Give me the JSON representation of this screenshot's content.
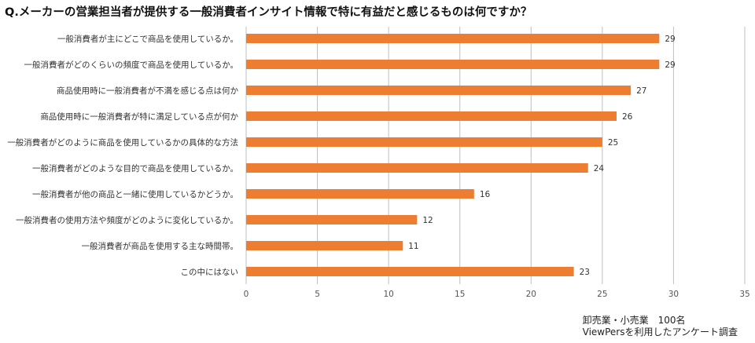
{
  "title": "Q.メーカーの営業担当者が提供する一般消費者インサイト情報で特に有益だと感じるものは何ですか？",
  "footnote": {
    "line1": "卸売業・小売業　100名",
    "line2": "ViewPersを利用したアンケート調査"
  },
  "colors": {
    "bar": "#ED7D31",
    "grid": "#BFBFBF"
  },
  "chart_data": {
    "type": "bar",
    "orientation": "horizontal",
    "categories": [
      "一般消費者が主にどこで商品を使用しているか。",
      "一般消費者がどのくらいの頻度で商品を使用しているか。",
      "商品使用時に一般消費者が不満を感じる点は何か",
      "商品使用時に一般消費者が特に満足している点が何か",
      "一般消費者がどのように商品を使用しているかの具体的な方法",
      "一般消費者がどのような目的で商品を使用しているか。",
      "一般消費者が他の商品と一緒に使用しているかどうか。",
      "一般消費者の使用方法や頻度がどのように変化しているか。",
      "一般消費者が商品を使用する主な時間帯。",
      "この中にはない"
    ],
    "values": [
      29,
      29,
      27,
      26,
      25,
      24,
      16,
      12,
      11,
      23
    ],
    "xlim": [
      0,
      35
    ],
    "xticks": [
      0,
      5,
      10,
      15,
      20,
      25,
      30,
      35
    ],
    "grid": true,
    "legend": "none",
    "title": "Q.メーカーの営業担当者が提供する一般消費者インサイト情報で特に有益だと感じるものは何ですか？"
  }
}
